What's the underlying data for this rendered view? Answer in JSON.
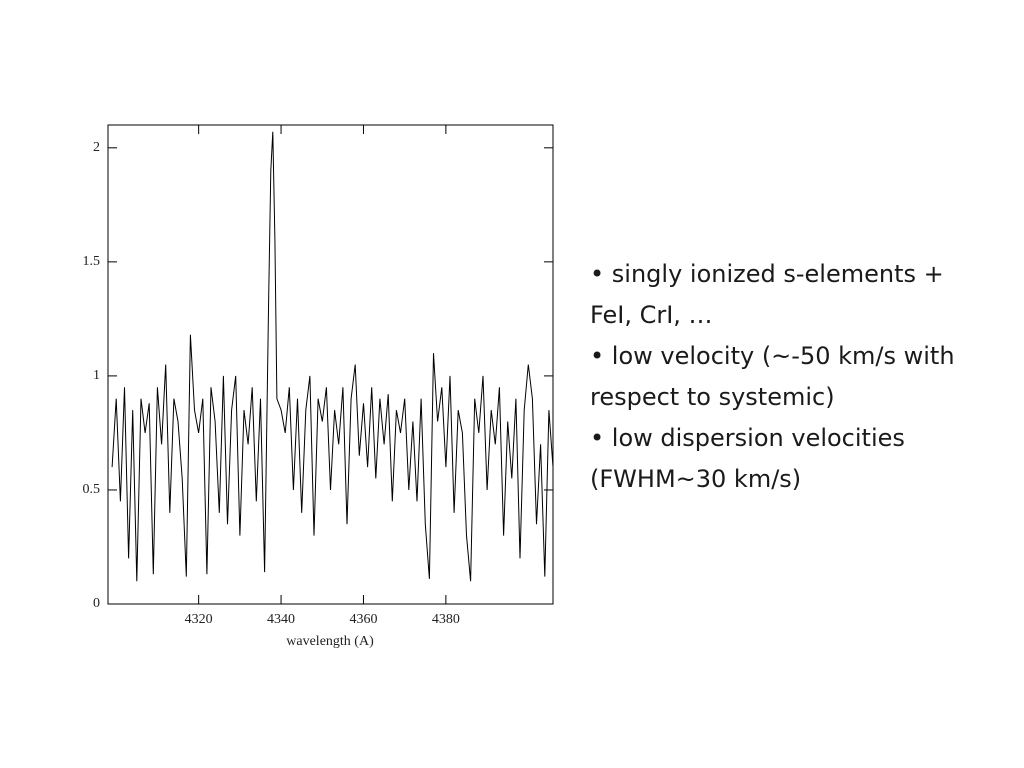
{
  "chart_data": {
    "type": "line",
    "xlabel": "wavelength (A)",
    "xlim": [
      4298,
      4406
    ],
    "xticks": [
      4320,
      4340,
      4360,
      4380
    ],
    "ylim": [
      0,
      2.1
    ],
    "yticks": [
      0,
      0.5,
      1,
      1.5,
      2
    ],
    "color": "#000000",
    "x": [
      4299,
      4300,
      4301,
      4302,
      4303,
      4304,
      4305,
      4306,
      4307,
      4308,
      4309,
      4310,
      4311,
      4312,
      4313,
      4314,
      4315,
      4316,
      4317,
      4318,
      4319,
      4320,
      4321,
      4322,
      4323,
      4324,
      4325,
      4326,
      4327,
      4328,
      4329,
      4330,
      4331,
      4332,
      4333,
      4334,
      4335,
      4336,
      4337,
      4337.5,
      4338,
      4338.5,
      4339,
      4340,
      4341,
      4342,
      4343,
      4344,
      4345,
      4346,
      4347,
      4348,
      4349,
      4350,
      4351,
      4352,
      4353,
      4354,
      4355,
      4356,
      4357,
      4358,
      4359,
      4360,
      4361,
      4362,
      4363,
      4364,
      4365,
      4366,
      4367,
      4368,
      4369,
      4370,
      4371,
      4372,
      4373,
      4374,
      4375,
      4376,
      4377,
      4378,
      4379,
      4380,
      4381,
      4382,
      4383,
      4384,
      4385,
      4386,
      4387,
      4388,
      4389,
      4390,
      4391,
      4392,
      4393,
      4394,
      4395,
      4396,
      4397,
      4398,
      4399,
      4400,
      4401,
      4402,
      4403,
      4404,
      4405,
      4406
    ],
    "values": [
      0.6,
      0.9,
      0.45,
      0.95,
      0.2,
      0.85,
      0.1,
      0.9,
      0.75,
      0.88,
      0.13,
      0.95,
      0.7,
      1.05,
      0.4,
      0.9,
      0.8,
      0.55,
      0.12,
      1.18,
      0.85,
      0.75,
      0.9,
      0.13,
      0.95,
      0.8,
      0.4,
      1.0,
      0.35,
      0.85,
      1.0,
      0.3,
      0.85,
      0.7,
      0.95,
      0.45,
      0.9,
      0.14,
      1.35,
      1.9,
      2.07,
      1.6,
      0.9,
      0.85,
      0.75,
      0.95,
      0.5,
      0.9,
      0.4,
      0.85,
      1.0,
      0.3,
      0.9,
      0.8,
      0.95,
      0.5,
      0.85,
      0.7,
      0.95,
      0.35,
      0.9,
      1.05,
      0.65,
      0.88,
      0.6,
      0.95,
      0.55,
      0.9,
      0.7,
      0.92,
      0.45,
      0.85,
      0.75,
      0.9,
      0.5,
      0.8,
      0.45,
      0.9,
      0.35,
      0.11,
      1.1,
      0.8,
      0.95,
      0.6,
      1.0,
      0.4,
      0.85,
      0.75,
      0.3,
      0.1,
      0.9,
      0.75,
      1.0,
      0.5,
      0.85,
      0.7,
      0.95,
      0.3,
      0.8,
      0.55,
      0.9,
      0.2,
      0.85,
      1.05,
      0.9,
      0.35,
      0.7,
      0.12,
      0.85,
      0.6
    ]
  },
  "bullets": [
    "• singly ionized s-elements + FeI, CrI, …",
    "• low velocity (~-50 km/s with respect to systemic)",
    "• low dispersion velocities (FWHM~30 km/s)"
  ]
}
